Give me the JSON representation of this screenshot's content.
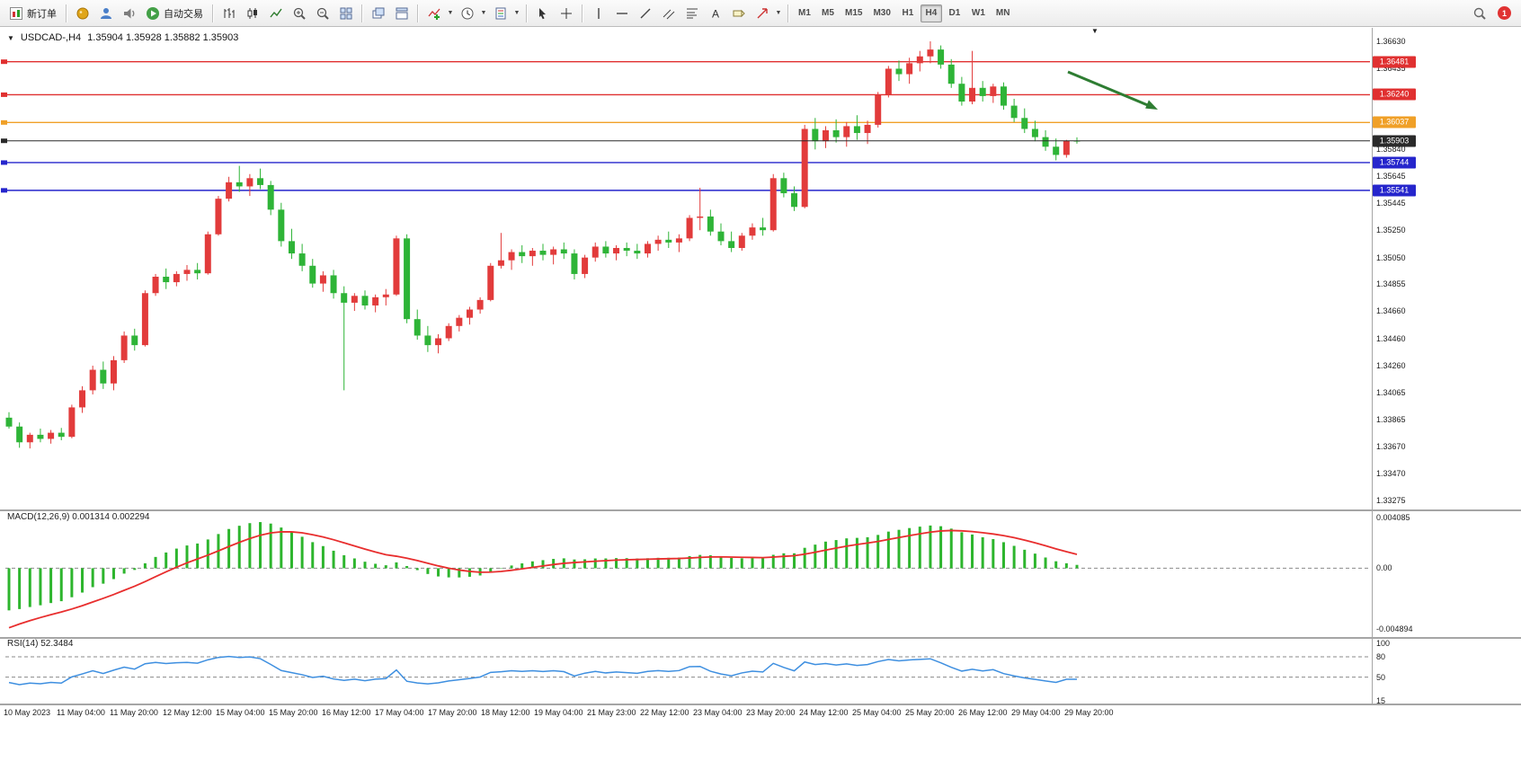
{
  "toolbar": {
    "new_order": "新订单",
    "autotrade": "自动交易",
    "timeframes": [
      "M1",
      "M5",
      "M15",
      "M30",
      "H1",
      "H4",
      "D1",
      "W1",
      "MN"
    ],
    "active_timeframe": "H4",
    "notification_count": "1"
  },
  "chart": {
    "symbol_title": "USDCAD-,H4",
    "ohlc": "1.35904 1.35928 1.35882 1.35903",
    "up_color": "#e23b3b",
    "down_color": "#2eb437",
    "annotation_arrow_color": "#2e7d32",
    "price_axis_labels": [
      "1.36630",
      "1.36435",
      "1.36240",
      "1.36045",
      "1.35840",
      "1.35645",
      "1.35445",
      "1.35250",
      "1.35050",
      "1.34855",
      "1.34660",
      "1.34460",
      "1.34260",
      "1.34065",
      "1.33865",
      "1.33670",
      "1.33470",
      "1.33275"
    ],
    "hlines": [
      {
        "price": 1.36481,
        "label": "1.36481",
        "color": "#e03030",
        "current": false
      },
      {
        "price": 1.3624,
        "label": "1.36240",
        "color": "#e03030",
        "current": false
      },
      {
        "price": 1.36037,
        "label": "1.36037",
        "color": "#f0a028",
        "current": false
      },
      {
        "price": 1.35903,
        "label": "1.35903",
        "color": "#2a2a2a",
        "current": true
      },
      {
        "price": 1.35744,
        "label": "1.35744",
        "color": "#2525cc",
        "current": false
      },
      {
        "price": 1.35541,
        "label": "1.35541",
        "color": "#2525cc",
        "current": false
      }
    ],
    "candles": [
      [
        1.3388,
        1.3392,
        1.338,
        1.33815
      ],
      [
        1.33815,
        1.33845,
        1.3366,
        1.337
      ],
      [
        1.337,
        1.3377,
        1.33655,
        1.33755
      ],
      [
        1.33755,
        1.338,
        1.337,
        1.33725
      ],
      [
        1.33725,
        1.3379,
        1.3369,
        1.3377
      ],
      [
        1.3377,
        1.33805,
        1.33715,
        1.3374
      ],
      [
        1.3374,
        1.33975,
        1.3373,
        1.33955
      ],
      [
        1.33955,
        1.3411,
        1.33915,
        1.3408
      ],
      [
        1.3408,
        1.3426,
        1.3405,
        1.3423
      ],
      [
        1.3423,
        1.3429,
        1.3409,
        1.3413
      ],
      [
        1.3413,
        1.3433,
        1.3408,
        1.343
      ],
      [
        1.343,
        1.3451,
        1.3428,
        1.3448
      ],
      [
        1.3448,
        1.3453,
        1.3437,
        1.3441
      ],
      [
        1.3441,
        1.3481,
        1.344,
        1.3479
      ],
      [
        1.3479,
        1.3493,
        1.3477,
        1.3491
      ],
      [
        1.3491,
        1.3497,
        1.3482,
        1.3487
      ],
      [
        1.3487,
        1.3495,
        1.3484,
        1.3493
      ],
      [
        1.3493,
        1.34995,
        1.3488,
        1.3496
      ],
      [
        1.3496,
        1.3501,
        1.3489,
        1.34935
      ],
      [
        1.34935,
        1.3524,
        1.34925,
        1.3522
      ],
      [
        1.3522,
        1.355,
        1.3521,
        1.3548
      ],
      [
        1.3548,
        1.3564,
        1.3546,
        1.356
      ],
      [
        1.356,
        1.3572,
        1.3553,
        1.3557
      ],
      [
        1.3557,
        1.3566,
        1.355,
        1.3563
      ],
      [
        1.3563,
        1.357,
        1.3555,
        1.3558
      ],
      [
        1.3558,
        1.3561,
        1.3536,
        1.354
      ],
      [
        1.354,
        1.3545,
        1.3513,
        1.3517
      ],
      [
        1.3517,
        1.3526,
        1.3504,
        1.3508
      ],
      [
        1.3508,
        1.3515,
        1.3495,
        1.3499
      ],
      [
        1.3499,
        1.3504,
        1.3483,
        1.3486
      ],
      [
        1.3486,
        1.3495,
        1.348,
        1.3492
      ],
      [
        1.3492,
        1.3496,
        1.3475,
        1.3479
      ],
      [
        1.3479,
        1.3484,
        1.3408,
        1.3472
      ],
      [
        1.3472,
        1.3479,
        1.3466,
        1.3477
      ],
      [
        1.3477,
        1.3481,
        1.3467,
        1.347
      ],
      [
        1.347,
        1.3478,
        1.3465,
        1.3476
      ],
      [
        1.3476,
        1.3482,
        1.347,
        1.3478
      ],
      [
        1.3478,
        1.3521,
        1.3477,
        1.3519
      ],
      [
        1.3519,
        1.3522,
        1.3457,
        1.346
      ],
      [
        1.346,
        1.3467,
        1.3445,
        1.3448
      ],
      [
        1.3448,
        1.3455,
        1.3436,
        1.3441
      ],
      [
        1.3441,
        1.3449,
        1.3435,
        1.3446
      ],
      [
        1.3446,
        1.3457,
        1.3444,
        1.3455
      ],
      [
        1.3455,
        1.3463,
        1.3451,
        1.3461
      ],
      [
        1.3461,
        1.3469,
        1.3456,
        1.3467
      ],
      [
        1.3467,
        1.3476,
        1.3464,
        1.3474
      ],
      [
        1.3474,
        1.3501,
        1.3473,
        1.3499
      ],
      [
        1.3499,
        1.3523,
        1.3497,
        1.3503
      ],
      [
        1.3503,
        1.3511,
        1.3496,
        1.3509
      ],
      [
        1.3509,
        1.3514,
        1.3501,
        1.3506
      ],
      [
        1.3506,
        1.3512,
        1.3499,
        1.351
      ],
      [
        1.351,
        1.3515,
        1.3503,
        1.3507
      ],
      [
        1.3507,
        1.3513,
        1.35,
        1.3511
      ],
      [
        1.3511,
        1.3516,
        1.3504,
        1.3508
      ],
      [
        1.3508,
        1.3511,
        1.3489,
        1.3493
      ],
      [
        1.3493,
        1.3507,
        1.349,
        1.3505
      ],
      [
        1.3505,
        1.3516,
        1.3502,
        1.3513
      ],
      [
        1.3513,
        1.3517,
        1.3505,
        1.3508
      ],
      [
        1.3508,
        1.3514,
        1.3503,
        1.3512
      ],
      [
        1.3512,
        1.3516,
        1.3506,
        1.351
      ],
      [
        1.351,
        1.3515,
        1.3504,
        1.3508
      ],
      [
        1.3508,
        1.3517,
        1.3505,
        1.3515
      ],
      [
        1.3515,
        1.3521,
        1.351,
        1.3518
      ],
      [
        1.3518,
        1.3524,
        1.3512,
        1.3516
      ],
      [
        1.3516,
        1.3522,
        1.3509,
        1.3519
      ],
      [
        1.3519,
        1.3536,
        1.3517,
        1.3534
      ],
      [
        1.3534,
        1.3556,
        1.3525,
        1.3535
      ],
      [
        1.3535,
        1.354,
        1.3521,
        1.3524
      ],
      [
        1.3524,
        1.353,
        1.3514,
        1.3517
      ],
      [
        1.3517,
        1.3524,
        1.3509,
        1.3512
      ],
      [
        1.3512,
        1.3523,
        1.351,
        1.3521
      ],
      [
        1.3521,
        1.353,
        1.3518,
        1.3527
      ],
      [
        1.3527,
        1.3534,
        1.3521,
        1.3525
      ],
      [
        1.3525,
        1.3566,
        1.3524,
        1.3563
      ],
      [
        1.3563,
        1.3567,
        1.3549,
        1.3552
      ],
      [
        1.3552,
        1.3557,
        1.3539,
        1.3542
      ],
      [
        1.3542,
        1.3602,
        1.3541,
        1.3599
      ],
      [
        1.3599,
        1.3607,
        1.3584,
        1.359
      ],
      [
        1.359,
        1.3601,
        1.3585,
        1.3598
      ],
      [
        1.3598,
        1.3606,
        1.3589,
        1.3593
      ],
      [
        1.3593,
        1.3604,
        1.3586,
        1.3601
      ],
      [
        1.3601,
        1.3609,
        1.3591,
        1.3596
      ],
      [
        1.3596,
        1.3605,
        1.3588,
        1.3602
      ],
      [
        1.3602,
        1.3626,
        1.36,
        1.3624
      ],
      [
        1.3624,
        1.3645,
        1.3622,
        1.3643
      ],
      [
        1.3643,
        1.3649,
        1.3634,
        1.3639
      ],
      [
        1.3639,
        1.3651,
        1.3632,
        1.3647
      ],
      [
        1.3647,
        1.3656,
        1.3641,
        1.3652
      ],
      [
        1.3652,
        1.3663,
        1.3647,
        1.3657
      ],
      [
        1.3657,
        1.366,
        1.3643,
        1.3646
      ],
      [
        1.3646,
        1.365,
        1.3629,
        1.3632
      ],
      [
        1.3632,
        1.3637,
        1.3616,
        1.3619
      ],
      [
        1.3619,
        1.3656,
        1.3617,
        1.3629
      ],
      [
        1.3629,
        1.3634,
        1.3619,
        1.3623
      ],
      [
        1.3623,
        1.3632,
        1.3618,
        1.363
      ],
      [
        1.363,
        1.3633,
        1.3613,
        1.3616
      ],
      [
        1.3616,
        1.3621,
        1.3604,
        1.3607
      ],
      [
        1.3607,
        1.3614,
        1.3596,
        1.3599
      ],
      [
        1.3599,
        1.3605,
        1.359,
        1.3593
      ],
      [
        1.3593,
        1.3598,
        1.3583,
        1.3586
      ],
      [
        1.3586,
        1.3592,
        1.3576,
        1.358
      ],
      [
        1.358,
        1.3591,
        1.3578,
        1.35904
      ],
      [
        1.35904,
        1.35928,
        1.35882,
        1.35903
      ]
    ]
  },
  "macd": {
    "label": "MACD(12,26,9) 0.001314 0.002294",
    "value_main": "0.001314",
    "value_signal": "0.002294",
    "axis_top": "0.004085",
    "axis_zero": "0.00",
    "axis_bottom": "-0.004894",
    "histogram_color": "#2db52d",
    "signal_color": "#e82e2e"
  },
  "rsi": {
    "label": "RSI(14) 52.3484",
    "value": "52.3484",
    "axis_labels": [
      "100",
      "80",
      "50",
      "15"
    ],
    "levels": [
      80,
      50
    ],
    "line_color": "#3e8fe0"
  },
  "time_axis": [
    "10 May 2023",
    "11 May 04:00",
    "11 May 20:00",
    "12 May 12:00",
    "15 May 04:00",
    "15 May 20:00",
    "16 May 12:00",
    "17 May 04:00",
    "17 May 20:00",
    "18 May 12:00",
    "19 May 04:00",
    "21 May 23:00",
    "22 May 12:00",
    "23 May 04:00",
    "23 May 20:00",
    "24 May 12:00",
    "25 May 04:00",
    "25 May 20:00",
    "26 May 12:00",
    "29 May 04:00",
    "29 May 20:00"
  ]
}
